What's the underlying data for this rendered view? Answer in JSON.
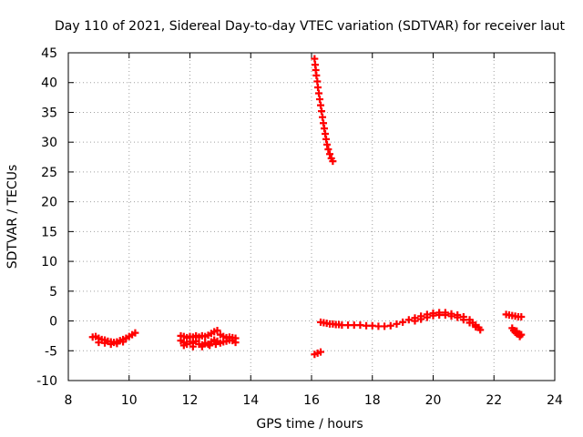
{
  "chart_data": {
    "type": "scatter",
    "title": "Day 110 of 2021, Sidereal Day-to-day VTEC variation (SDTVAR) for receiver laut",
    "xlabel": "GPS time / hours",
    "ylabel": "SDTVAR / TECUs",
    "xlim": [
      8,
      24
    ],
    "ylim": [
      -10,
      45
    ],
    "xticks": [
      "8",
      "10",
      "12",
      "14",
      "16",
      "18",
      "20",
      "22",
      "24"
    ],
    "yticks": [
      "45",
      "40",
      "35",
      "30",
      "25",
      "20",
      "15",
      "10",
      "5",
      "0",
      "-5",
      "-10"
    ],
    "grid": true,
    "marker": "+",
    "series": [
      {
        "name": "SDTVAR",
        "color": "#ff0000",
        "points": [
          [
            8.8,
            -2.7
          ],
          [
            8.9,
            -2.6
          ],
          [
            9.0,
            -2.9
          ],
          [
            9.1,
            -3.1
          ],
          [
            9.2,
            -3.2
          ],
          [
            9.3,
            -3.4
          ],
          [
            9.4,
            -3.5
          ],
          [
            9.5,
            -3.6
          ],
          [
            9.6,
            -3.5
          ],
          [
            9.7,
            -3.3
          ],
          [
            9.8,
            -3.1
          ],
          [
            9.9,
            -2.9
          ],
          [
            10.0,
            -2.6
          ],
          [
            10.1,
            -2.3
          ],
          [
            10.2,
            -2.0
          ],
          [
            9.0,
            -3.6
          ],
          [
            9.2,
            -3.7
          ],
          [
            9.4,
            -3.9
          ],
          [
            9.6,
            -3.8
          ],
          [
            9.8,
            -3.5
          ],
          [
            11.7,
            -2.5
          ],
          [
            11.8,
            -2.6
          ],
          [
            11.9,
            -2.8
          ],
          [
            12.0,
            -2.6
          ],
          [
            12.1,
            -2.7
          ],
          [
            12.2,
            -2.5
          ],
          [
            12.3,
            -2.7
          ],
          [
            12.4,
            -2.5
          ],
          [
            12.5,
            -2.6
          ],
          [
            12.6,
            -2.4
          ],
          [
            12.7,
            -2.1
          ],
          [
            12.8,
            -1.8
          ],
          [
            12.9,
            -1.6
          ],
          [
            13.0,
            -2.3
          ],
          [
            13.1,
            -2.6
          ],
          [
            13.2,
            -2.8
          ],
          [
            13.3,
            -2.7
          ],
          [
            13.4,
            -2.8
          ],
          [
            13.5,
            -2.9
          ],
          [
            11.7,
            -3.3
          ],
          [
            11.8,
            -3.6
          ],
          [
            11.9,
            -3.9
          ],
          [
            12.0,
            -3.5
          ],
          [
            12.1,
            -3.7
          ],
          [
            12.2,
            -3.4
          ],
          [
            12.3,
            -3.9
          ],
          [
            12.4,
            -4.0
          ],
          [
            12.5,
            -3.7
          ],
          [
            12.6,
            -3.9
          ],
          [
            12.7,
            -3.5
          ],
          [
            12.8,
            -3.2
          ],
          [
            12.9,
            -3.4
          ],
          [
            13.0,
            -3.7
          ],
          [
            13.1,
            -3.5
          ],
          [
            13.2,
            -3.4
          ],
          [
            13.3,
            -3.2
          ],
          [
            13.4,
            -3.3
          ],
          [
            13.5,
            -3.6
          ],
          [
            11.8,
            -4.1
          ],
          [
            12.1,
            -4.3
          ],
          [
            12.4,
            -4.3
          ],
          [
            12.65,
            -4.1
          ],
          [
            12.85,
            -3.9
          ],
          [
            16.1,
            44.0
          ],
          [
            16.12,
            43.0
          ],
          [
            16.14,
            42.1
          ],
          [
            16.16,
            41.2
          ],
          [
            16.19,
            40.2
          ],
          [
            16.21,
            39.2
          ],
          [
            16.24,
            38.2
          ],
          [
            16.27,
            37.2
          ],
          [
            16.3,
            36.2
          ],
          [
            16.33,
            35.2
          ],
          [
            16.36,
            34.2
          ],
          [
            16.39,
            33.2
          ],
          [
            16.42,
            32.3
          ],
          [
            16.45,
            31.4
          ],
          [
            16.48,
            30.5
          ],
          [
            16.51,
            29.6
          ],
          [
            16.55,
            28.8
          ],
          [
            16.6,
            28.0
          ],
          [
            16.65,
            27.3
          ],
          [
            16.7,
            26.8
          ],
          [
            16.1,
            -5.6
          ],
          [
            16.2,
            -5.4
          ],
          [
            16.3,
            -5.2
          ],
          [
            16.3,
            -0.2
          ],
          [
            16.4,
            -0.3
          ],
          [
            16.5,
            -0.4
          ],
          [
            16.6,
            -0.5
          ],
          [
            16.7,
            -0.5
          ],
          [
            16.8,
            -0.6
          ],
          [
            16.9,
            -0.6
          ],
          [
            17.0,
            -0.7
          ],
          [
            17.2,
            -0.7
          ],
          [
            17.4,
            -0.7
          ],
          [
            17.6,
            -0.7
          ],
          [
            17.8,
            -0.8
          ],
          [
            18.0,
            -0.8
          ],
          [
            18.2,
            -0.9
          ],
          [
            18.4,
            -0.9
          ],
          [
            18.6,
            -0.8
          ],
          [
            18.8,
            -0.5
          ],
          [
            19.0,
            -0.2
          ],
          [
            19.2,
            0.2
          ],
          [
            19.4,
            0.5
          ],
          [
            19.6,
            0.8
          ],
          [
            19.8,
            1.1
          ],
          [
            20.0,
            1.3
          ],
          [
            20.2,
            1.4
          ],
          [
            20.4,
            1.4
          ],
          [
            20.6,
            1.2
          ],
          [
            20.8,
            1.0
          ],
          [
            21.0,
            0.7
          ],
          [
            21.2,
            0.2
          ],
          [
            21.3,
            -0.3
          ],
          [
            21.4,
            -0.7
          ],
          [
            21.5,
            -1.1
          ],
          [
            21.55,
            -1.5
          ],
          [
            19.4,
            0.0
          ],
          [
            19.6,
            0.3
          ],
          [
            19.8,
            0.6
          ],
          [
            20.0,
            0.9
          ],
          [
            20.2,
            1.0
          ],
          [
            20.4,
            1.0
          ],
          [
            20.6,
            0.8
          ],
          [
            20.8,
            0.6
          ],
          [
            21.0,
            0.2
          ],
          [
            21.2,
            -0.3
          ],
          [
            21.4,
            -1.0
          ],
          [
            22.4,
            1.1
          ],
          [
            22.5,
            1.0
          ],
          [
            22.6,
            0.9
          ],
          [
            22.7,
            0.8
          ],
          [
            22.8,
            0.7
          ],
          [
            22.9,
            0.7
          ],
          [
            22.6,
            -1.2
          ],
          [
            22.65,
            -1.6
          ],
          [
            22.7,
            -1.9
          ],
          [
            22.75,
            -2.1
          ],
          [
            22.8,
            -2.2
          ],
          [
            22.85,
            -2.3
          ],
          [
            22.9,
            -2.3
          ],
          [
            22.75,
            -1.7
          ],
          [
            22.85,
            -2.6
          ]
        ]
      }
    ]
  }
}
